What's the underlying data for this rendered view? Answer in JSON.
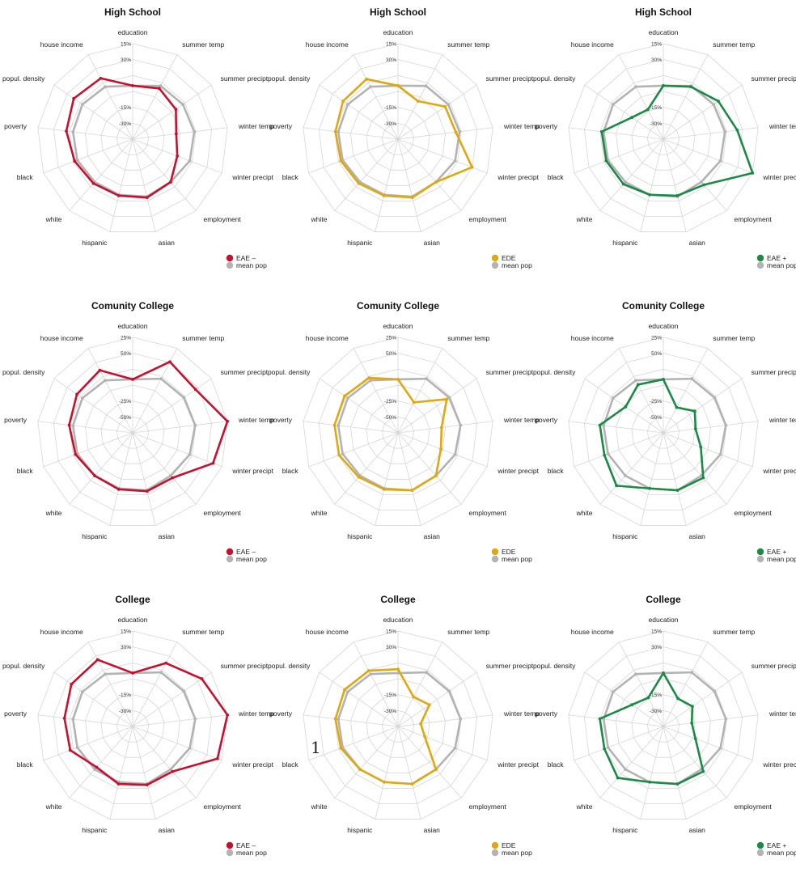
{
  "page_number": "1",
  "colors": {
    "EAE –": "#c8102e",
    "EDE": "#e0a810",
    "EAE +": "#1a8a45",
    "mean pop": "#b3b3b3"
  },
  "chart_data": [
    {
      "type": "radar",
      "title": "High School",
      "axes": [
        "education",
        "summer temp",
        "summer precipt",
        "winter temp",
        "winter precipt",
        "employment",
        "asian",
        "hispanic",
        "white",
        "black",
        "poverty",
        "popul. density",
        "house income"
      ],
      "radial_tick_labels": [
        "15%",
        "30%",
        "-15%",
        "-30%"
      ],
      "series": [
        {
          "name": "EAE –",
          "color": "#c8102e",
          "values": [
            0.56,
            0.6,
            0.55,
            0.46,
            0.5,
            0.6,
            0.63,
            0.61,
            0.62,
            0.65,
            0.7,
            0.75,
            0.72
          ]
        },
        {
          "name": "mean pop",
          "color": "#b3b3b3",
          "values": [
            0.56,
            0.63,
            0.64,
            0.65,
            0.64,
            0.6,
            0.62,
            0.6,
            0.6,
            0.62,
            0.63,
            0.64,
            0.62
          ]
        }
      ],
      "legend": [
        "EAE –",
        "mean pop"
      ],
      "legend_position": "bottom-right"
    },
    {
      "type": "radar",
      "title": "High School",
      "axes": [
        "education",
        "summer temp",
        "summer precipt",
        "winter temp",
        "winter precipt",
        "employment",
        "asian",
        "hispanic",
        "white",
        "black",
        "poverty",
        "popul. density",
        "house income"
      ],
      "radial_tick_labels": [
        "15%",
        "30%",
        "-15%",
        "-30%"
      ],
      "series": [
        {
          "name": "EDE",
          "color": "#e0a810",
          "values": [
            0.56,
            0.45,
            0.6,
            0.61,
            0.83,
            0.6,
            0.63,
            0.61,
            0.62,
            0.64,
            0.66,
            0.7,
            0.71
          ]
        },
        {
          "name": "mean pop",
          "color": "#b3b3b3",
          "values": [
            0.56,
            0.63,
            0.64,
            0.65,
            0.64,
            0.6,
            0.62,
            0.6,
            0.6,
            0.62,
            0.63,
            0.64,
            0.62
          ]
        }
      ],
      "legend": [
        "EDE",
        "mean pop"
      ],
      "legend_position": "bottom-right"
    },
    {
      "type": "radar",
      "title": "High School",
      "axes": [
        "education",
        "summer temp",
        "summer precipt",
        "winter temp",
        "winter precipt",
        "employment",
        "asian",
        "hispanic",
        "white",
        "black",
        "poverty",
        "popul. density",
        "house income"
      ],
      "radial_tick_labels": [
        "15%",
        "30%",
        "-15%",
        "-30%"
      ],
      "series": [
        {
          "name": "EAE +",
          "color": "#1a8a45",
          "values": [
            0.56,
            0.62,
            0.7,
            0.78,
            1.0,
            0.64,
            0.61,
            0.6,
            0.63,
            0.64,
            0.65,
            0.4,
            0.35
          ]
        },
        {
          "name": "mean pop",
          "color": "#b3b3b3",
          "values": [
            0.56,
            0.63,
            0.64,
            0.65,
            0.64,
            0.6,
            0.62,
            0.6,
            0.6,
            0.62,
            0.63,
            0.64,
            0.62
          ]
        }
      ],
      "legend": [
        "EAE +",
        "mean pop"
      ],
      "legend_position": "bottom-right"
    },
    {
      "type": "radar",
      "title": "Comunity College",
      "axes": [
        "education",
        "summer temp",
        "summer precipt",
        "winter temp",
        "winter precipt",
        "employment",
        "asian",
        "hispanic",
        "white",
        "black",
        "poverty",
        "popul. density",
        "house income"
      ],
      "radial_tick_labels": [
        "25%",
        "50%",
        "-25%",
        "-50%"
      ],
      "series": [
        {
          "name": "EAE –",
          "color": "#c8102e",
          "values": [
            0.56,
            0.84,
            0.8,
            1.0,
            0.9,
            0.63,
            0.63,
            0.61,
            0.6,
            0.64,
            0.67,
            0.71,
            0.74
          ]
        },
        {
          "name": "mean pop",
          "color": "#b3b3b3",
          "values": [
            0.56,
            0.64,
            0.65,
            0.66,
            0.64,
            0.6,
            0.62,
            0.6,
            0.6,
            0.62,
            0.63,
            0.64,
            0.62
          ]
        }
      ],
      "legend": [
        "EAE –",
        "mean pop"
      ],
      "legend_position": "bottom-right"
    },
    {
      "type": "radar",
      "title": "Comunity College",
      "axes": [
        "education",
        "summer temp",
        "summer precipt",
        "winter temp",
        "winter precipt",
        "employment",
        "asian",
        "hispanic",
        "white",
        "black",
        "poverty",
        "popul. density",
        "house income"
      ],
      "radial_tick_labels": [
        "25%",
        "50%",
        "-25%",
        "-50%"
      ],
      "series": [
        {
          "name": "EDE",
          "color": "#e0a810",
          "values": [
            0.56,
            0.36,
            0.62,
            0.46,
            0.48,
            0.6,
            0.62,
            0.61,
            0.62,
            0.66,
            0.67,
            0.68,
            0.65
          ]
        },
        {
          "name": "mean pop",
          "color": "#b3b3b3",
          "values": [
            0.56,
            0.64,
            0.65,
            0.66,
            0.64,
            0.6,
            0.62,
            0.6,
            0.6,
            0.62,
            0.63,
            0.64,
            0.62
          ]
        }
      ],
      "legend": [
        "EDE",
        "mean pop"
      ],
      "legend_position": "bottom-right"
    },
    {
      "type": "radar",
      "title": "Comunity College",
      "axes": [
        "education",
        "summer temp",
        "summer precipt",
        "winter temp",
        "winter precipt",
        "employment",
        "asian",
        "hispanic",
        "white",
        "black",
        "poverty",
        "popul. density",
        "house income"
      ],
      "radial_tick_labels": [
        "25%",
        "50%",
        "-25%",
        "-50%"
      ],
      "series": [
        {
          "name": "EAE +",
          "color": "#1a8a45",
          "values": [
            0.56,
            0.3,
            0.4,
            0.34,
            0.42,
            0.63,
            0.62,
            0.6,
            0.74,
            0.66,
            0.67,
            0.48,
            0.57
          ]
        },
        {
          "name": "mean pop",
          "color": "#b3b3b3",
          "values": [
            0.56,
            0.64,
            0.65,
            0.66,
            0.64,
            0.6,
            0.62,
            0.6,
            0.6,
            0.62,
            0.63,
            0.64,
            0.62
          ]
        }
      ],
      "legend": [
        "EAE +",
        "mean pop"
      ],
      "legend_position": "bottom-right"
    },
    {
      "type": "radar",
      "title": "College",
      "axes": [
        "education",
        "summer temp",
        "summer precipt",
        "winter temp",
        "winter precipt",
        "employment",
        "asian",
        "hispanic",
        "white",
        "black",
        "poverty",
        "popul. density",
        "house income"
      ],
      "radial_tick_labels": [
        "15%",
        "30%",
        "-15%",
        "-30%"
      ],
      "series": [
        {
          "name": "EAE –",
          "color": "#c8102e",
          "values": [
            0.56,
            0.75,
            0.88,
            1.0,
            0.95,
            0.63,
            0.63,
            0.62,
            0.57,
            0.7,
            0.72,
            0.78,
            0.79
          ]
        },
        {
          "name": "mean pop",
          "color": "#b3b3b3",
          "values": [
            0.56,
            0.64,
            0.65,
            0.66,
            0.64,
            0.6,
            0.62,
            0.6,
            0.6,
            0.62,
            0.63,
            0.64,
            0.62
          ]
        }
      ],
      "legend": [
        "EAE –",
        "mean pop"
      ],
      "legend_position": "bottom-right"
    },
    {
      "type": "radar",
      "title": "College",
      "axes": [
        "education",
        "summer temp",
        "summer precipt",
        "winter temp",
        "winter precipt",
        "employment",
        "asian",
        "hispanic",
        "white",
        "black",
        "poverty",
        "popul. density",
        "house income"
      ],
      "radial_tick_labels": [
        "15%",
        "30%",
        "-15%",
        "-30%"
      ],
      "series": [
        {
          "name": "EDE",
          "color": "#e0a810",
          "values": [
            0.6,
            0.35,
            0.4,
            0.24,
            0.3,
            0.6,
            0.62,
            0.6,
            0.6,
            0.64,
            0.66,
            0.68,
            0.66
          ]
        },
        {
          "name": "mean pop",
          "color": "#b3b3b3",
          "values": [
            0.56,
            0.64,
            0.65,
            0.66,
            0.64,
            0.6,
            0.62,
            0.6,
            0.6,
            0.62,
            0.63,
            0.64,
            0.62
          ]
        }
      ],
      "legend": [
        "EDE",
        "mean pop"
      ],
      "legend_position": "bottom-right"
    },
    {
      "type": "radar",
      "title": "College",
      "axes": [
        "education",
        "summer temp",
        "summer precipt",
        "winter temp",
        "winter precipt",
        "employment",
        "asian",
        "hispanic",
        "white",
        "black",
        "poverty",
        "popul. density",
        "house income"
      ],
      "radial_tick_labels": [
        "15%",
        "30%",
        "-15%",
        "-30%"
      ],
      "series": [
        {
          "name": "EAE +",
          "color": "#1a8a45",
          "values": [
            0.56,
            0.33,
            0.37,
            0.3,
            0.36,
            0.63,
            0.62,
            0.6,
            0.72,
            0.66,
            0.67,
            0.4,
            0.34
          ]
        },
        {
          "name": "mean pop",
          "color": "#b3b3b3",
          "values": [
            0.56,
            0.64,
            0.65,
            0.66,
            0.64,
            0.6,
            0.62,
            0.6,
            0.6,
            0.62,
            0.63,
            0.64,
            0.62
          ]
        }
      ],
      "legend": [
        "EAE +",
        "mean pop"
      ],
      "legend_position": "bottom-right"
    }
  ]
}
